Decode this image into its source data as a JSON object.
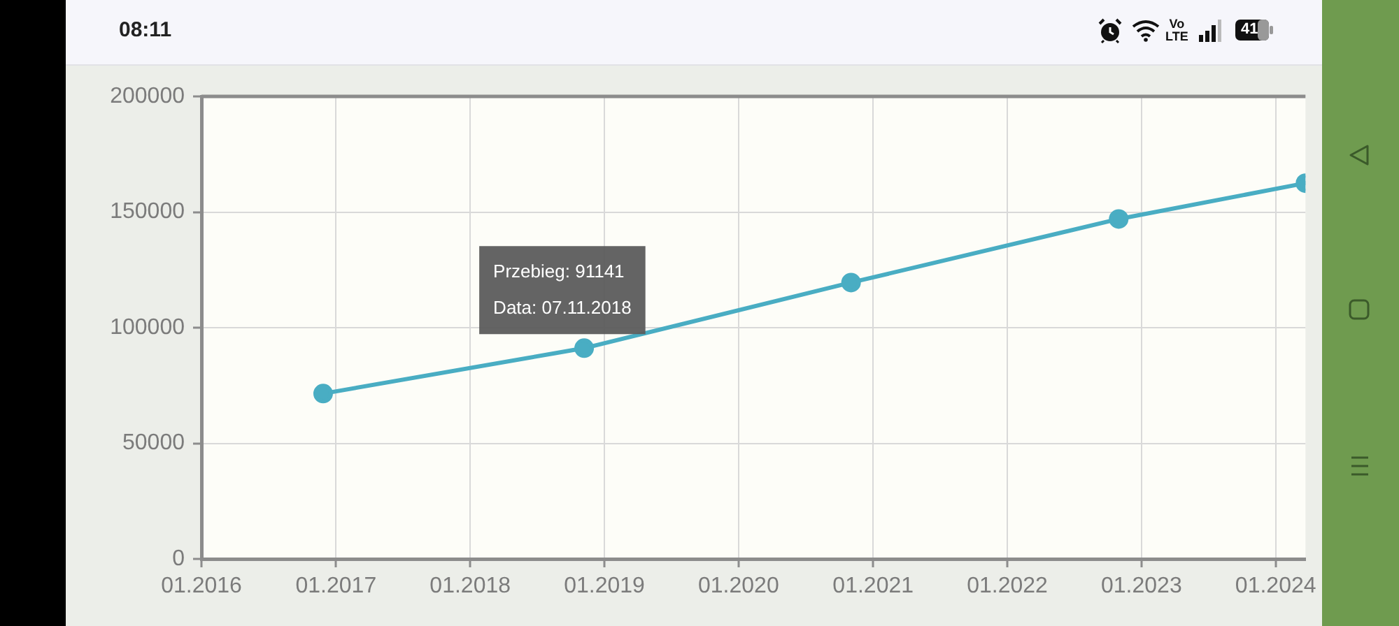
{
  "chart_data": {
    "type": "line",
    "x": [
      "2016-11-27",
      "2018-11-07",
      "2020-11-02",
      "2022-10-31",
      "2024-03-22"
    ],
    "series": [
      {
        "color": "#49adc3",
        "values": [
          71500,
          91141,
          119500,
          147000,
          162500
        ]
      }
    ],
    "xlim": [
      "2016-01-01",
      "2024-03-22"
    ],
    "xticks": [
      {
        "value": "2016-01",
        "label": "01.2016"
      },
      {
        "value": "2017-01",
        "label": "01.2017"
      },
      {
        "value": "2018-01",
        "label": "01.2018"
      },
      {
        "value": "2019-01",
        "label": "01.2019"
      },
      {
        "value": "2020-01",
        "label": "01.2020"
      },
      {
        "value": "2021-01",
        "label": "01.2021"
      },
      {
        "value": "2022-01",
        "label": "01.2022"
      },
      {
        "value": "2023-01",
        "label": "01.2023"
      },
      {
        "value": "2024-01",
        "label": "01.2024"
      }
    ],
    "ylim": [
      0,
      200000
    ],
    "yticks": [
      0,
      50000,
      100000,
      150000,
      200000
    ],
    "grid": true,
    "marker": "circle",
    "line_style": "solid",
    "annotations": [
      {
        "text": "Przebieg: 91141\nData: 07.11.2018",
        "x": "2018-11-07",
        "y": 91141
      },
      "08:11",
      "Vo LTE",
      "41"
    ]
  }
}
